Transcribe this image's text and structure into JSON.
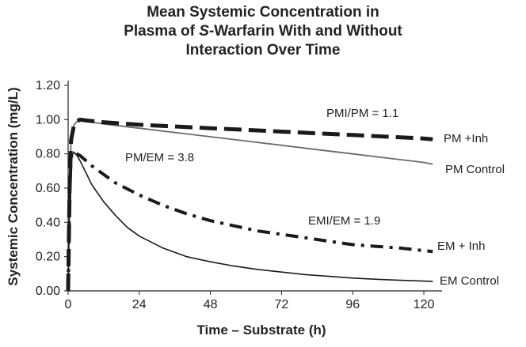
{
  "chart_data": {
    "type": "line",
    "title_lines": [
      "Mean Systemic Concentration in",
      "Plasma of S-Warfarin With and Without",
      "Interaction Over Time"
    ],
    "title_italic_word": "S",
    "xlabel": "Time – Substrate (h)",
    "ylabel": "Systemic Concentration (mg/L)",
    "xlim": [
      0,
      124
    ],
    "ylim": [
      0,
      1.2
    ],
    "x_ticks": [
      0,
      24,
      48,
      72,
      96,
      120
    ],
    "y_ticks": [
      "0.00",
      "0.20",
      "0.40",
      "0.60",
      "0.80",
      "1.00",
      "1.20"
    ],
    "grid": false,
    "series": [
      {
        "name": "PM +Inh",
        "style": "long-dash",
        "color": "#1a1a1a",
        "x": [
          0,
          0.5,
          1,
          2,
          3,
          4,
          6,
          12,
          24,
          36,
          48,
          60,
          72,
          84,
          96,
          108,
          120,
          123
        ],
        "y": [
          0,
          0.6,
          0.88,
          0.97,
          0.99,
          1.0,
          0.995,
          0.985,
          0.97,
          0.96,
          0.95,
          0.94,
          0.93,
          0.92,
          0.91,
          0.9,
          0.89,
          0.885
        ]
      },
      {
        "name": "PM Control",
        "style": "solid",
        "color": "#6a6a6a",
        "x": [
          0,
          0.5,
          1,
          2,
          3,
          4,
          6,
          12,
          24,
          36,
          48,
          60,
          72,
          84,
          96,
          108,
          120,
          123
        ],
        "y": [
          0,
          0.6,
          0.88,
          0.97,
          0.99,
          1.0,
          0.99,
          0.975,
          0.95,
          0.925,
          0.9,
          0.875,
          0.85,
          0.825,
          0.8,
          0.775,
          0.75,
          0.74
        ]
      },
      {
        "name": "EM + Inh",
        "style": "dash-dot",
        "color": "#1a1a1a",
        "x": [
          0,
          0.5,
          1,
          2,
          3,
          4,
          6,
          8,
          12,
          16,
          24,
          32,
          40,
          48,
          56,
          64,
          72,
          80,
          88,
          96,
          104,
          112,
          120,
          123
        ],
        "y": [
          0,
          0.55,
          0.78,
          0.81,
          0.8,
          0.79,
          0.76,
          0.73,
          0.68,
          0.63,
          0.56,
          0.5,
          0.45,
          0.41,
          0.38,
          0.35,
          0.33,
          0.31,
          0.29,
          0.27,
          0.26,
          0.25,
          0.235,
          0.23
        ]
      },
      {
        "name": "EM Control",
        "style": "solid",
        "color": "#1a1a1a",
        "x": [
          0,
          0.5,
          1,
          2,
          3,
          4,
          6,
          8,
          10,
          12,
          16,
          20,
          24,
          32,
          40,
          48,
          56,
          64,
          72,
          80,
          88,
          96,
          104,
          112,
          120,
          123
        ],
        "y": [
          0,
          0.55,
          0.78,
          0.81,
          0.79,
          0.76,
          0.69,
          0.62,
          0.57,
          0.52,
          0.44,
          0.37,
          0.32,
          0.25,
          0.2,
          0.17,
          0.145,
          0.125,
          0.11,
          0.095,
          0.085,
          0.075,
          0.068,
          0.062,
          0.057,
          0.055
        ]
      }
    ],
    "annotations": [
      "PMI/PM = 1.1",
      "PM/EM = 3.8",
      "EMI/EM = 1.9"
    ]
  }
}
